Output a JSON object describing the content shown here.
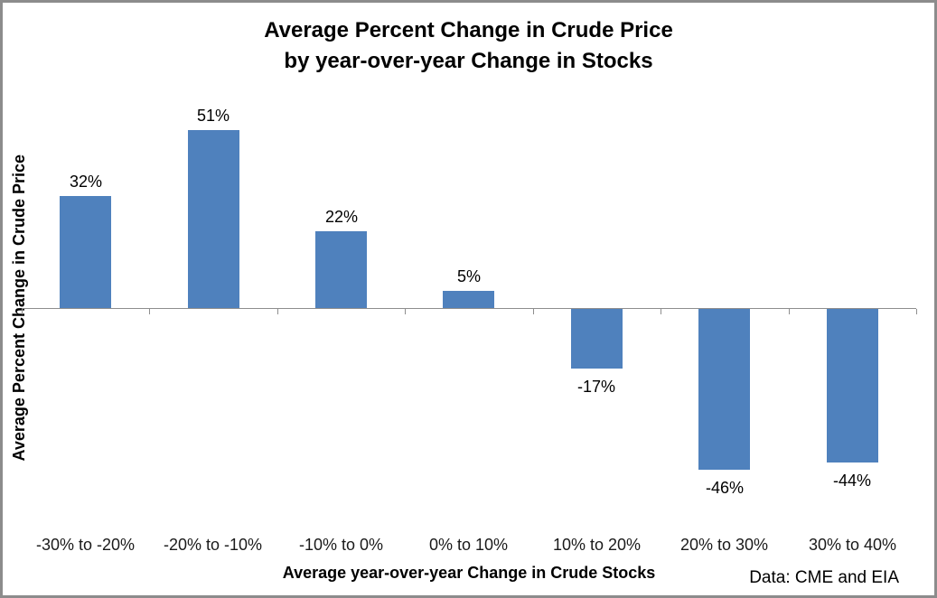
{
  "title": {
    "line1": "Average Percent Change in Crude Price",
    "line2": "by year-over-year Change in Stocks"
  },
  "source_note": "Data: CME and EIA",
  "chart_data": {
    "type": "bar",
    "title": "Average Percent Change in Crude Price by year-over-year Change in Stocks",
    "categories": [
      "-30% to -20%",
      "-20% to -10%",
      "-10% to 0%",
      "0% to 10%",
      "10% to 20%",
      "20% to 30%",
      "30% to 40%"
    ],
    "values": [
      32,
      51,
      22,
      5,
      -17,
      -46,
      -44
    ],
    "data_labels": [
      "32%",
      "51%",
      "22%",
      "5%",
      "-17%",
      "-46%",
      "-44%"
    ],
    "xlabel": "Average year-over-year Change in Crude Stocks",
    "ylabel": "Average Percent Change in Crude Price",
    "ylim": [
      -60,
      60
    ],
    "grid": false,
    "legend": false,
    "bar_color": "#4F81BD",
    "axis_color": "#8E8E8E",
    "frame_border_color": "#8C8C8C"
  }
}
